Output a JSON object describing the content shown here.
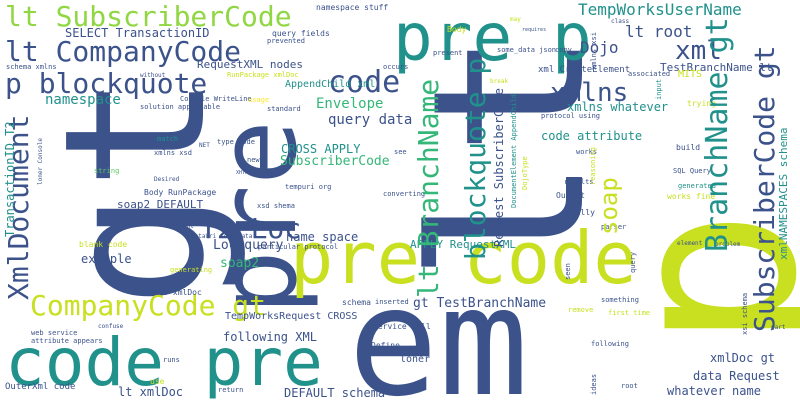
{
  "colors": {
    "background": "#ffffff",
    "palette": [
      "#3b528b",
      "#440154",
      "#21918c",
      "#5ec962",
      "#c8e020",
      "#fde725",
      "#2a788e",
      "#35b779",
      "#472d7b",
      "#1fa187",
      "#90d743"
    ]
  },
  "words": [
    {
      "text": "gt",
      "color": "#3b528b"
    },
    {
      "text": "lt",
      "color": "#3b528b"
    },
    {
      "text": "p",
      "color": "#c8e020"
    },
    {
      "text": "em",
      "color": "#3b528b"
    },
    {
      "text": "pre",
      "color": "#3b528b"
    },
    {
      "text": "pre code",
      "color": "#c8e020"
    },
    {
      "text": "code pre",
      "color": "#21918c"
    },
    {
      "text": "pre p",
      "color": "#21918c"
    },
    {
      "text": "lt SubscriberCode",
      "color": "#90d743"
    },
    {
      "text": "lt CompanyCode",
      "color": "#3b528b"
    },
    {
      "text": "p blockquote",
      "color": "#3b528b"
    },
    {
      "text": "XmlDocument",
      "color": "#3b528b"
    },
    {
      "text": "CompanyCode gt",
      "color": "#c8e020"
    },
    {
      "text": "T2 Loc",
      "color": "#3b528b"
    },
    {
      "text": "xml",
      "color": "#3b528b"
    },
    {
      "text": "xmlns",
      "color": "#3b528b"
    },
    {
      "text": "code",
      "color": "#3b528b"
    },
    {
      "text": "soap",
      "color": "#c8e020"
    },
    {
      "text": "BranchName gt",
      "color": "#21918c"
    },
    {
      "text": "SubscriberCode gt",
      "color": "#3b528b"
    },
    {
      "text": "lt BranchName",
      "color": "#35b779"
    },
    {
      "text": "blockquote p",
      "color": "#21918c"
    },
    {
      "text": "TempWorksUserName",
      "color": "#21918c"
    },
    {
      "text": "lt root",
      "color": "#3b528b"
    },
    {
      "text": "Dojo",
      "color": "#3b528b"
    },
    {
      "text": "SELECT TransactionID",
      "color": "#3b528b"
    },
    {
      "text": "namespace",
      "color": "#21918c"
    },
    {
      "text": "Envelope",
      "color": "#35b779"
    },
    {
      "text": "query data",
      "color": "#3b528b"
    },
    {
      "text": "SubscriberCode",
      "color": "#35b779"
    },
    {
      "text": "CROSS APPLY",
      "color": "#21918c"
    },
    {
      "text": "code attribute",
      "color": "#21918c"
    },
    {
      "text": "xmlns whatever",
      "color": "#21918c"
    },
    {
      "text": "TestBranchName lt",
      "color": "#3b528b"
    },
    {
      "text": "xml CreateElement",
      "color": "#3b528b"
    },
    {
      "text": "AppendChild xml",
      "color": "#21918c"
    },
    {
      "text": "RequestXML nodes",
      "color": "#3b528b"
    },
    {
      "text": "soap2 DEFAULT",
      "color": "#3b528b"
    },
    {
      "text": "example",
      "color": "#3b528b"
    },
    {
      "text": "name space",
      "color": "#3b528b"
    },
    {
      "text": "Loc query",
      "color": "#3b528b"
    },
    {
      "text": "soap2",
      "color": "#35b779"
    },
    {
      "text": "gt TestBranchName",
      "color": "#3b528b"
    },
    {
      "text": "APPLY RequestXML",
      "color": "#21918c"
    },
    {
      "text": "following XML",
      "color": "#3b528b"
    },
    {
      "text": "TempWorksRequest CROSS",
      "color": "#3b528b"
    },
    {
      "text": "DEFAULT schema",
      "color": "#3b528b"
    },
    {
      "text": "lt xmlDoc",
      "color": "#3b528b"
    },
    {
      "text": "OuterXml code",
      "color": "#3b528b"
    },
    {
      "text": "xmlDoc gt",
      "color": "#3b528b"
    },
    {
      "text": "data Request",
      "color": "#3b528b"
    },
    {
      "text": "whatever name",
      "color": "#3b528b"
    },
    {
      "text": "TransactionID T2",
      "color": "#21918c"
    },
    {
      "text": "Request SubscriberCode",
      "color": "#3b528b"
    },
    {
      "text": "xmlns xsi",
      "color": "#3b528b"
    },
    {
      "text": "namespace stuff",
      "color": "#3b528b"
    },
    {
      "text": "query fields",
      "color": "#3b528b"
    },
    {
      "text": "RunPackage xmlDoc",
      "color": "#c8e020"
    },
    {
      "text": "Console WriteLine",
      "color": "#3b528b"
    },
    {
      "text": "solution applicable",
      "color": "#3b528b"
    },
    {
      "text": "without",
      "color": "#3b528b"
    },
    {
      "text": "schema xmlns",
      "color": "#3b528b"
    },
    {
      "text": "usage",
      "color": "#fde725"
    },
    {
      "text": "standard",
      "color": "#3b528b"
    },
    {
      "text": "occurs",
      "color": "#3b528b"
    },
    {
      "text": "present",
      "color": "#3b528b"
    },
    {
      "text": "some_data json",
      "color": "#3b528b"
    },
    {
      "text": "protocol using",
      "color": "#3b528b"
    },
    {
      "text": "MITS",
      "color": "#c8e020"
    },
    {
      "text": "trying",
      "color": "#c8e020"
    },
    {
      "text": "input",
      "color": "#21918c"
    },
    {
      "text": "associated",
      "color": "#3b528b"
    },
    {
      "text": "copy",
      "color": "#3b528b"
    },
    {
      "text": "Body",
      "color": "#c8e020"
    },
    {
      "text": "prevented",
      "color": "#3b528b"
    },
    {
      "text": "match",
      "color": "#21918c"
    },
    {
      "text": "NET",
      "color": "#3b528b"
    },
    {
      "text": "xmlns xsd",
      "color": "#3b528b"
    },
    {
      "text": "type code",
      "color": "#3b528b"
    },
    {
      "text": "Desired",
      "color": "#3b528b"
    },
    {
      "text": "string",
      "color": "#5ec962"
    },
    {
      "text": "Body RunPackage",
      "color": "#3b528b"
    },
    {
      "text": "xsd shema",
      "color": "#3b528b"
    },
    {
      "text": "ComboBox type",
      "color": "#3b528b"
    },
    {
      "text": "tempuri org",
      "color": "#3b528b"
    },
    {
      "text": "see",
      "color": "#3b528b"
    },
    {
      "text": "works",
      "color": "#3b528b"
    },
    {
      "text": "reasoning",
      "color": "#c8e020"
    },
    {
      "text": "retults",
      "color": "#3b528b"
    },
    {
      "text": "converting",
      "color": "#3b528b"
    },
    {
      "text": "Output",
      "color": "#3b528b"
    },
    {
      "text": "DojoType",
      "color": "#c8e020"
    },
    {
      "text": "SQL Query",
      "color": "#3b528b"
    },
    {
      "text": "generated",
      "color": "#21918c"
    },
    {
      "text": "works fine",
      "color": "#c8e020"
    },
    {
      "text": "build",
      "color": "#3b528b"
    },
    {
      "text": "really",
      "color": "#3b528b"
    },
    {
      "text": "parser",
      "color": "#3b528b"
    },
    {
      "text": "query",
      "color": "#3b528b"
    },
    {
      "text": "element",
      "color": "#3b528b"
    },
    {
      "text": "problem",
      "color": "#3b528b"
    },
    {
      "text": "DocumentElement AppendChild",
      "color": "#21918c"
    },
    {
      "text": "blank code",
      "color": "#c8e020"
    },
    {
      "text": "generating",
      "color": "#c8e020"
    },
    {
      "text": "dataUri some_data",
      "color": "#3b528b"
    },
    {
      "text": "document",
      "color": "#3b528b"
    },
    {
      "text": "particular protocol",
      "color": "#3b528b"
    },
    {
      "text": "nodes xmlDoc",
      "color": "#3b528b"
    },
    {
      "text": "schema",
      "color": "#3b528b"
    },
    {
      "text": "inserted",
      "color": "#3b528b"
    },
    {
      "text": "service call",
      "color": "#3b528b"
    },
    {
      "text": "Define",
      "color": "#3b528b"
    },
    {
      "text": "loner",
      "color": "#3b528b"
    },
    {
      "text": "remove",
      "color": "#c8e020"
    },
    {
      "text": "something",
      "color": "#3b528b"
    },
    {
      "text": "first time",
      "color": "#c8e020"
    },
    {
      "text": "following",
      "color": "#3b528b"
    },
    {
      "text": "xsi schema",
      "color": "#3b528b"
    },
    {
      "text": "part",
      "color": "#3b528b"
    },
    {
      "text": "web service",
      "color": "#3b528b"
    },
    {
      "text": "attribute appears",
      "color": "#3b528b"
    },
    {
      "text": "runs",
      "color": "#3b528b"
    },
    {
      "text": "confuse",
      "color": "#3b528b"
    },
    {
      "text": "use",
      "color": "#c8e020"
    },
    {
      "text": "return",
      "color": "#3b528b"
    },
    {
      "text": "ideas",
      "color": "#3b528b"
    },
    {
      "text": "root",
      "color": "#3b528b"
    },
    {
      "text": "xmlNAMESPACES schema",
      "color": "#21918c"
    },
    {
      "text": "class",
      "color": "#3b528b"
    },
    {
      "text": "requires",
      "color": "#3b528b"
    },
    {
      "text": "loner Console",
      "color": "#3b528b"
    },
    {
      "text": "new",
      "color": "#3b528b"
    },
    {
      "text": "seen",
      "color": "#3b528b"
    },
    {
      "text": "XHTML",
      "color": "#3b528b"
    },
    {
      "text": "break",
      "color": "#c8e020"
    },
    {
      "text": "may",
      "color": "#c8e020"
    }
  ]
}
